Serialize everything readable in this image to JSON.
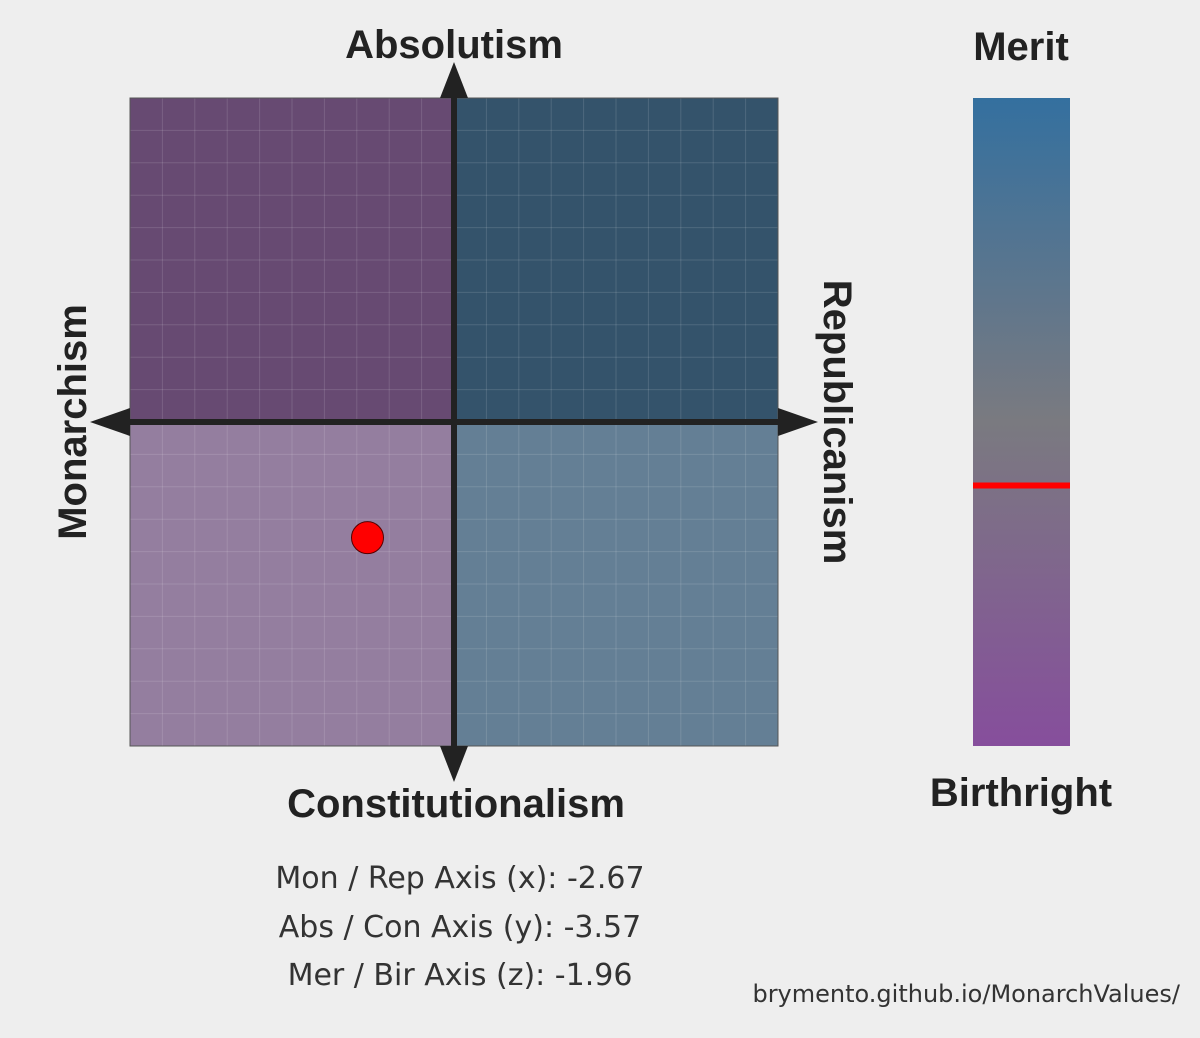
{
  "chart_data": {
    "type": "scatter",
    "subtype": "political-compass",
    "axis_labels": {
      "top": "Absolutism",
      "bottom": "Constitutionalism",
      "left": "Monarchism",
      "right": "Republicanism"
    },
    "xlim": [
      -10,
      10
    ],
    "ylim": [
      -10,
      10
    ],
    "grid": true,
    "quadrant_colors": {
      "top_left": "#674a72",
      "top_right": "#34536b",
      "bottom_left": "#947e9f",
      "bottom_right": "#647f95"
    },
    "point": {
      "x": -2.67,
      "y": -3.57,
      "color": "#ff0000"
    },
    "side_bar": {
      "top_label": "Merit",
      "bottom_label": "Birthright",
      "range": [
        -10,
        10
      ],
      "value": -1.96,
      "top_color": "#34709f",
      "mid_color": "#7a7a80",
      "bottom_color": "#864e9c",
      "marker_color": "#ff0000"
    }
  },
  "scores": [
    "Mon / Rep Axis (x): -2.67",
    "Abs / Con Axis (y): -3.57",
    "Mer / Bir Axis (z): -1.96"
  ],
  "credit": "brymento.github.io/MonarchValues/"
}
